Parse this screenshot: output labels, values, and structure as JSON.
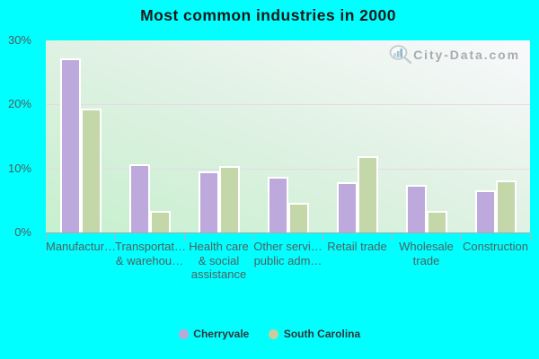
{
  "title": "Most common industries in 2000",
  "watermark": {
    "text": "City-Data.com",
    "icon": "magnifier-with-bars-icon"
  },
  "colors": {
    "page_background": "#00ffff",
    "cherryvale_bar": "#bda9dc",
    "south_carolina_bar": "#c4d7a8",
    "cherryvale_legend_dot": "#b9a8d8",
    "south_carolina_legend_dot": "#c9cd9d",
    "bar_border": "#ffffff",
    "title_text": "#1a1a1a",
    "axis_text": "#4f605f"
  },
  "chart_data": {
    "type": "bar",
    "title": "Most common industries in 2000",
    "categories": [
      "Manufactur…",
      "Transportat… & warehou…",
      "Health care & social assistance",
      "Other servi… public adm…",
      "Retail trade",
      "Wholesale trade",
      "Construction"
    ],
    "category_display_lines": [
      [
        "Manufactur…"
      ],
      [
        "Transportat…",
        "& warehou…"
      ],
      [
        "Health care",
        "& social",
        "assistance"
      ],
      [
        "Other servi…",
        "public adm…"
      ],
      [
        "Retail trade"
      ],
      [
        "Wholesale",
        "trade"
      ],
      [
        "Construction"
      ]
    ],
    "series": [
      {
        "name": "Cherryvale",
        "color": "#bda9dc",
        "values": [
          27.2,
          10.6,
          9.6,
          8.7,
          7.9,
          7.4,
          6.6
        ]
      },
      {
        "name": "South Carolina",
        "color": "#c4d7a8",
        "values": [
          19.4,
          3.4,
          10.4,
          4.6,
          11.9,
          3.3,
          8.2
        ]
      }
    ],
    "xlabel": "",
    "ylabel": "",
    "ylim": [
      0,
      30
    ],
    "yticks": [
      "0%",
      "10%",
      "20%",
      "30%"
    ],
    "grid": "horizontal",
    "legend_position": "bottom"
  },
  "legend": {
    "items": [
      {
        "label": "Cherryvale",
        "color": "#b9a8d8"
      },
      {
        "label": "South Carolina",
        "color": "#c9cd9d"
      }
    ]
  }
}
